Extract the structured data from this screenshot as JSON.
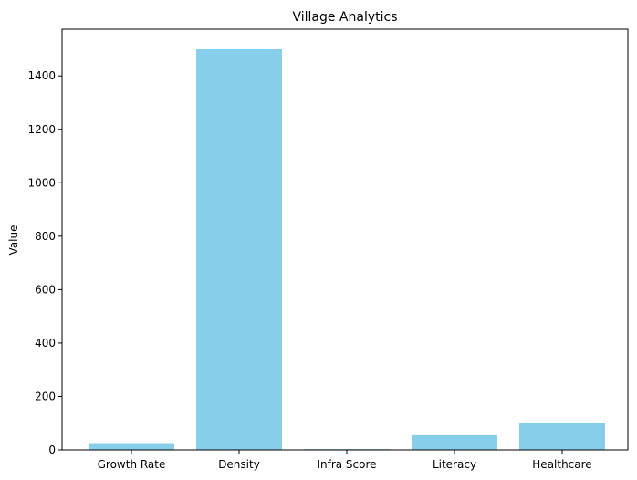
{
  "chart_data": {
    "type": "bar",
    "title": "Village Analytics",
    "xlabel": "",
    "ylabel": "Value",
    "categories": [
      "Growth Rate",
      "Density",
      "Infra Score",
      "Literacy",
      "Healthcare"
    ],
    "values": [
      22,
      1500,
      3,
      55,
      100
    ],
    "ylim": [
      0,
      1575
    ],
    "yticks": [
      0,
      200,
      400,
      600,
      800,
      1000,
      1200,
      1400
    ],
    "bar_color": "#87ceeb",
    "grid": false,
    "legend": "none"
  }
}
